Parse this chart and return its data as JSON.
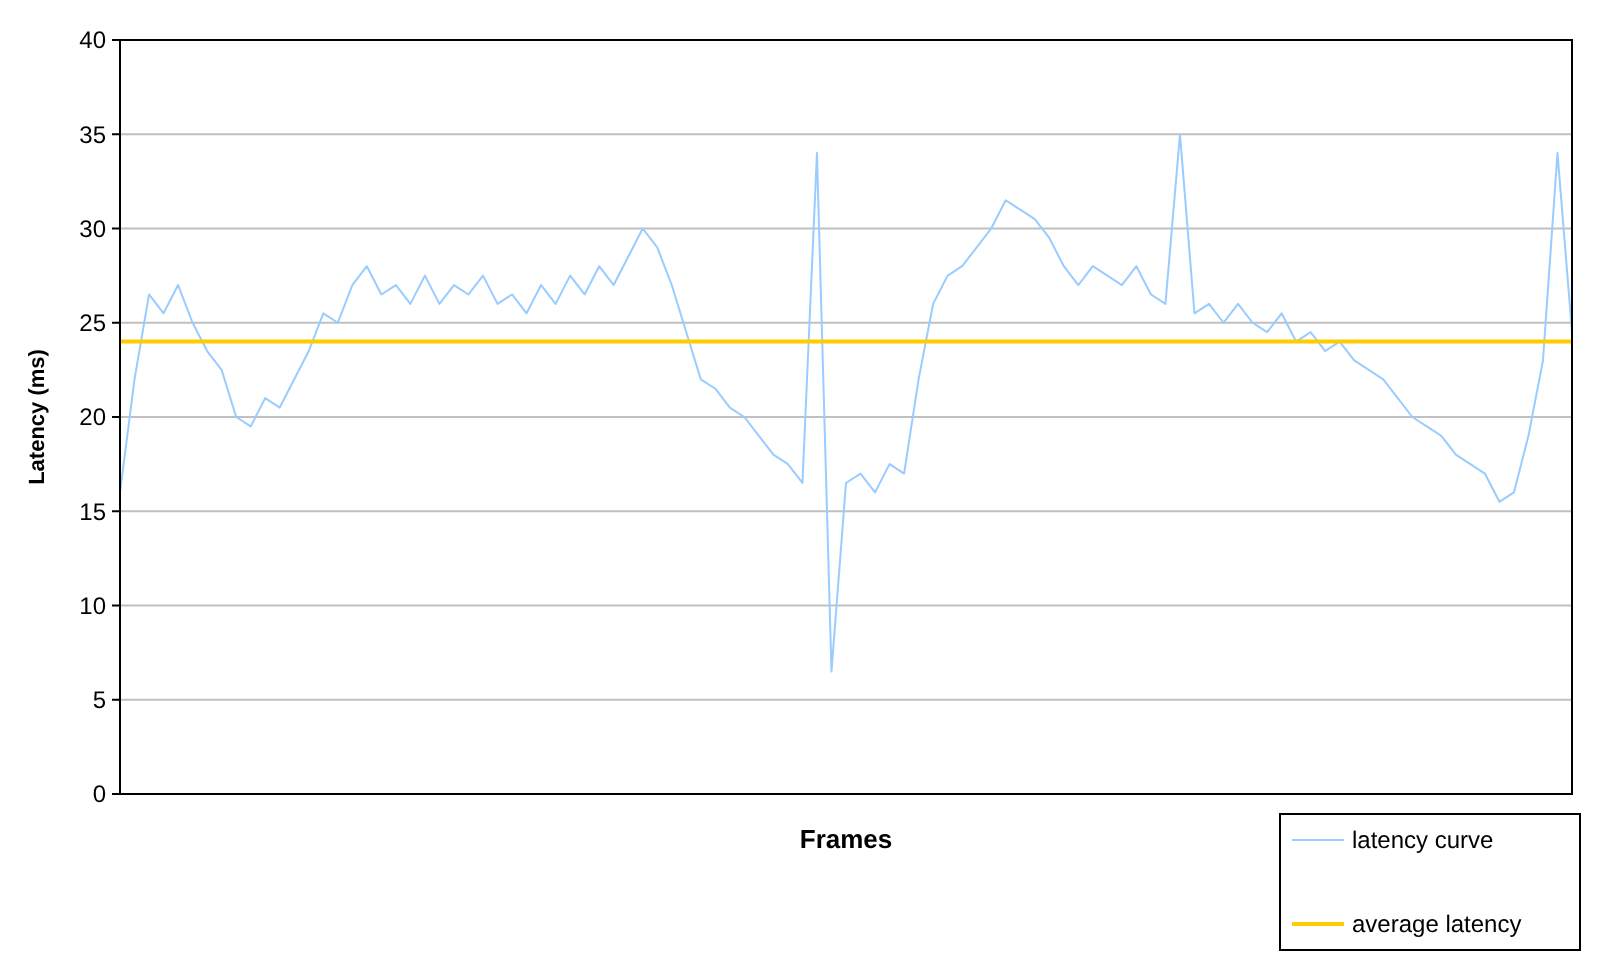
{
  "chart_data": {
    "type": "line",
    "xlabel": "Frames",
    "ylabel": "Latency (ms)",
    "categories": [
      null,
      null,
      null,
      null,
      null,
      null,
      null,
      null,
      null,
      null,
      null,
      null,
      null,
      null,
      null,
      null,
      null,
      null,
      null,
      null,
      null,
      null,
      null,
      null,
      null,
      null,
      null,
      null,
      null,
      null,
      null,
      null,
      null,
      null,
      null,
      null,
      null,
      null,
      null,
      null,
      null,
      null,
      null,
      null,
      null,
      null,
      null,
      null,
      null,
      null,
      null,
      null,
      null,
      null,
      null,
      null,
      null,
      null,
      null,
      null,
      null,
      null,
      null,
      null,
      null,
      null,
      null,
      null,
      null,
      null,
      null,
      null,
      null,
      null,
      null,
      null,
      null,
      null,
      null,
      null,
      null,
      null,
      null,
      null,
      null,
      null,
      null,
      null,
      null,
      null,
      null,
      null,
      null,
      null,
      null,
      null,
      null,
      null,
      null,
      null,
      null
    ],
    "series": [
      {
        "name": "latency curve",
        "color": "#99ccff",
        "values": [
          16,
          22,
          26.5,
          25.5,
          27,
          25,
          23.5,
          22.5,
          20,
          19.5,
          21,
          20.5,
          22,
          23.5,
          25.5,
          25,
          27,
          28,
          26.5,
          27,
          26,
          27.5,
          26,
          27,
          26.5,
          27.5,
          26,
          26.5,
          25.5,
          27,
          26,
          27.5,
          26.5,
          28,
          27,
          28.5,
          30,
          29,
          27,
          24.5,
          22,
          21.5,
          20.5,
          20,
          19,
          18,
          17.5,
          16.5,
          34,
          6.5,
          16.5,
          17,
          16,
          17.5,
          17,
          22,
          26,
          27.5,
          28,
          29,
          30,
          31.5,
          31,
          30.5,
          29.5,
          28,
          27,
          28,
          27.5,
          27,
          28,
          26.5,
          26,
          35,
          25.5,
          26,
          25,
          26,
          25,
          24.5,
          25.5,
          24,
          24.5,
          23.5,
          24,
          23,
          22.5,
          22,
          21,
          20,
          19.5,
          19,
          18,
          17.5,
          17,
          15.5,
          16,
          19,
          23,
          34,
          24.5
        ]
      },
      {
        "name": "average latency",
        "color": "#ffcc00",
        "values": [
          24,
          24,
          24,
          24,
          24,
          24,
          24,
          24,
          24,
          24,
          24,
          24,
          24,
          24,
          24,
          24,
          24,
          24,
          24,
          24,
          24,
          24,
          24,
          24,
          24,
          24,
          24,
          24,
          24,
          24,
          24,
          24,
          24,
          24,
          24,
          24,
          24,
          24,
          24,
          24,
          24,
          24,
          24,
          24,
          24,
          24,
          24,
          24,
          24,
          24,
          24,
          24,
          24,
          24,
          24,
          24,
          24,
          24,
          24,
          24,
          24,
          24,
          24,
          24,
          24,
          24,
          24,
          24,
          24,
          24,
          24,
          24,
          24,
          24,
          24,
          24,
          24,
          24,
          24,
          24,
          24,
          24,
          24,
          24,
          24,
          24,
          24,
          24,
          24,
          24,
          24,
          24,
          24,
          24,
          24,
          24,
          24,
          24,
          24,
          24,
          24
        ]
      }
    ],
    "ylim": [
      0,
      40
    ],
    "yticks": [
      0,
      5,
      10,
      15,
      20,
      25,
      30,
      35,
      40
    ],
    "grid": "y",
    "legend": "bottom right",
    "marker": "none",
    "line_style": "solid"
  }
}
